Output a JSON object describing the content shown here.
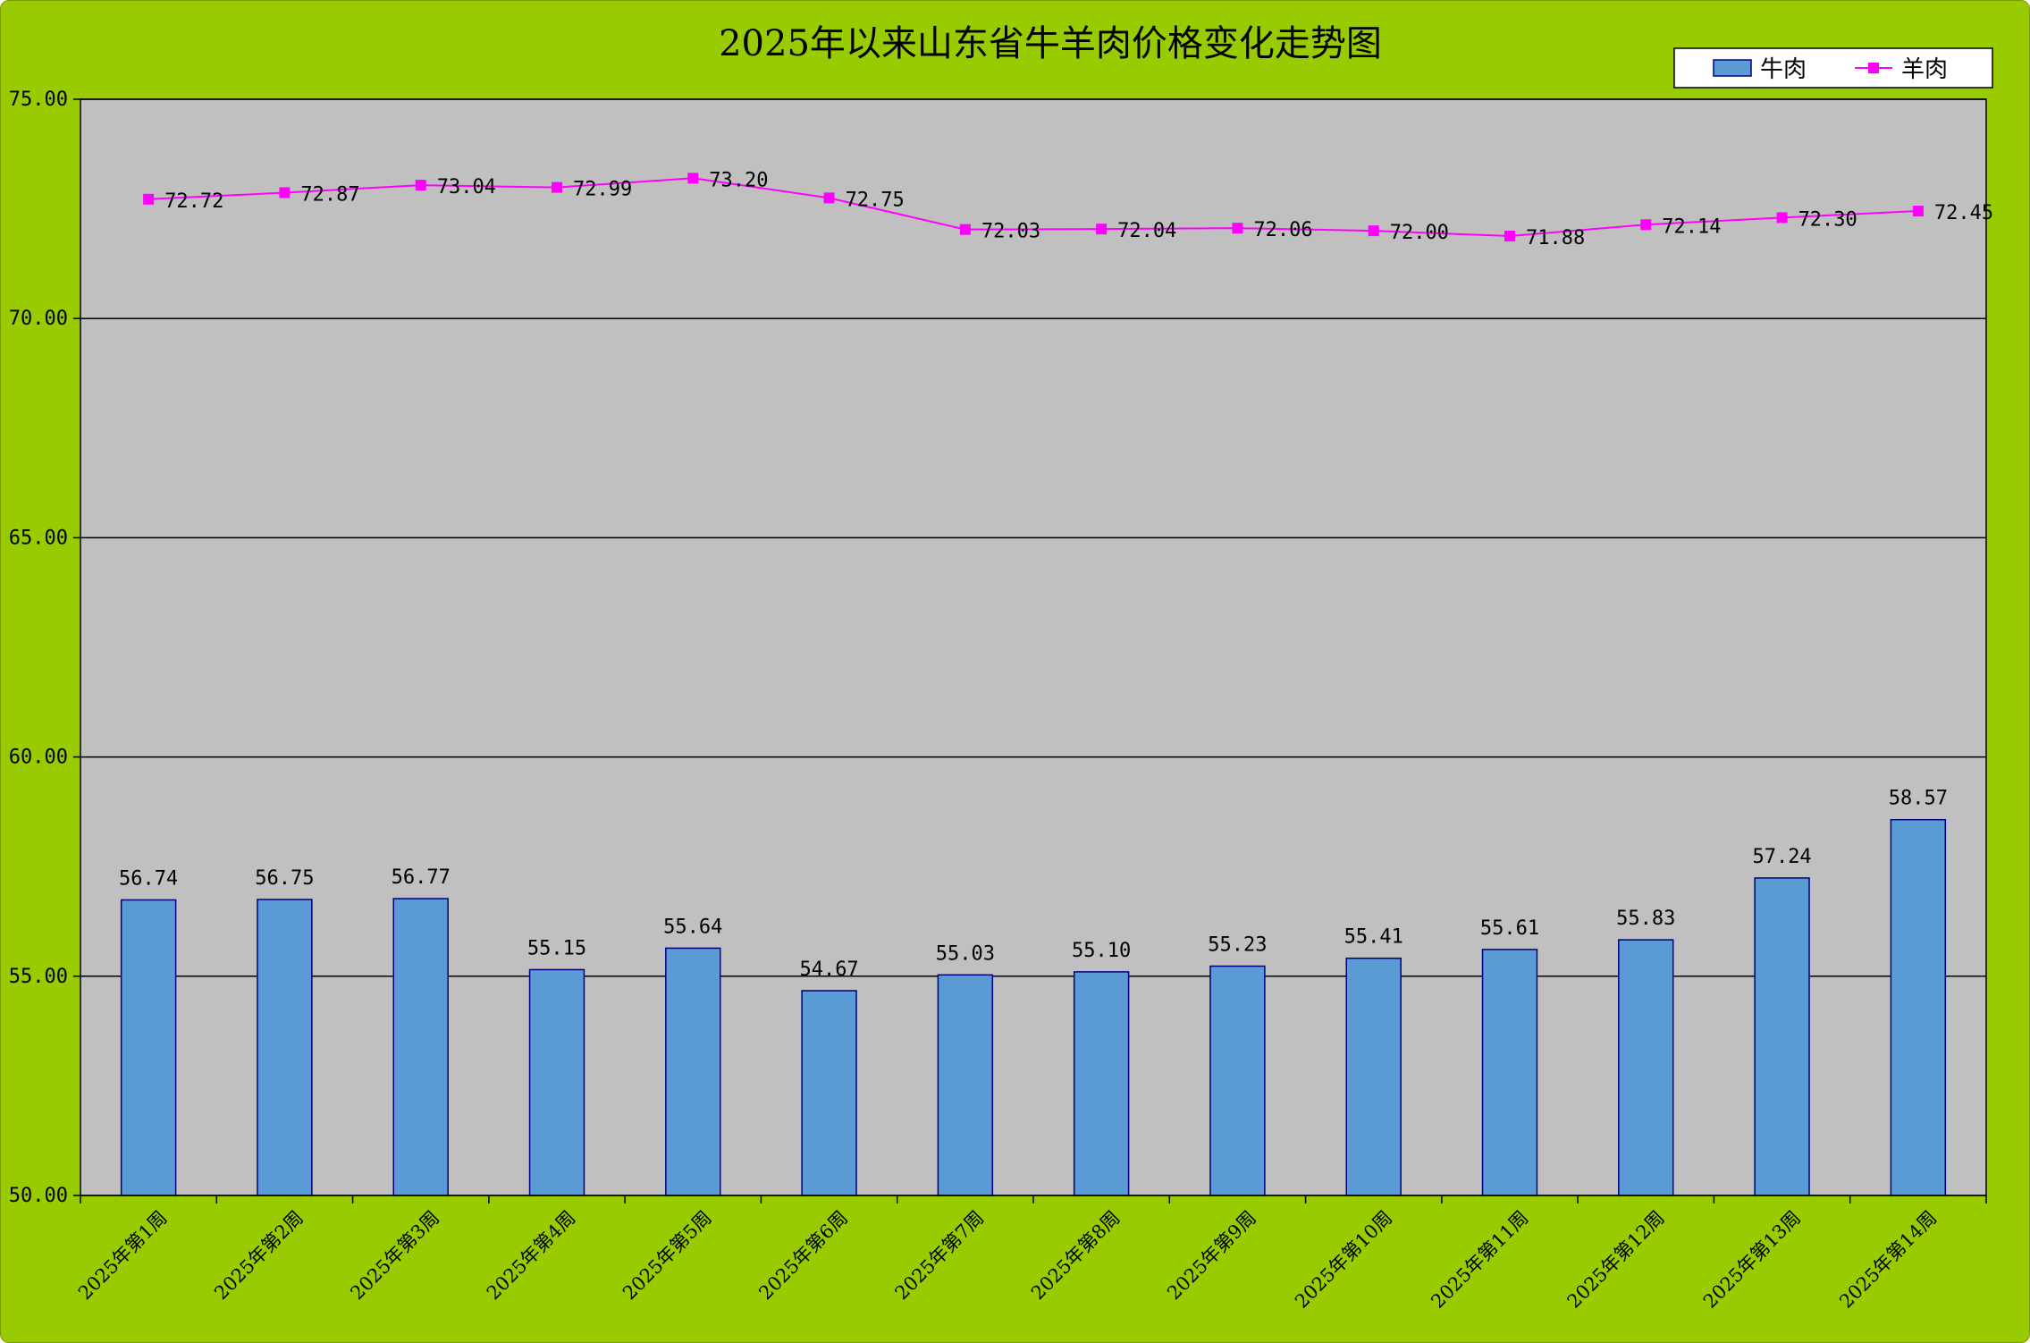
{
  "chart_data": {
    "type": "bar",
    "title": "2025年以来山东省牛羊肉价格变化走势图",
    "categories": [
      "2025年第1周",
      "2025年第2周",
      "2025年第3周",
      "2025年第4周",
      "2025年第5周",
      "2025年第6周",
      "2025年第7周",
      "2025年第8周",
      "2025年第9周",
      "2025年第10周",
      "2025年第11周",
      "2025年第12周",
      "2025年第13周",
      "2025年第14周"
    ],
    "series": [
      {
        "name": "牛肉",
        "type": "bar",
        "color": "#5b9bd5",
        "border_color": "#000080",
        "values": [
          56.74,
          56.75,
          56.77,
          55.15,
          55.64,
          54.67,
          55.03,
          55.1,
          55.23,
          55.41,
          55.61,
          55.83,
          57.24,
          58.57
        ]
      },
      {
        "name": "羊肉",
        "type": "line",
        "color": "#ff00ff",
        "values": [
          72.72,
          72.87,
          73.04,
          72.99,
          73.2,
          72.75,
          72.03,
          72.04,
          72.06,
          72.0,
          71.88,
          72.14,
          72.3,
          72.45
        ]
      }
    ],
    "ylim": [
      50,
      75
    ],
    "yticks": [
      "50.00",
      "55.00",
      "60.00",
      "65.00",
      "70.00",
      "75.00"
    ],
    "xlabel": "",
    "ylabel": "",
    "grid": true,
    "legend_position": "top-right",
    "plot_background": "#c0c0c0",
    "frame_background": "#99cc00"
  }
}
